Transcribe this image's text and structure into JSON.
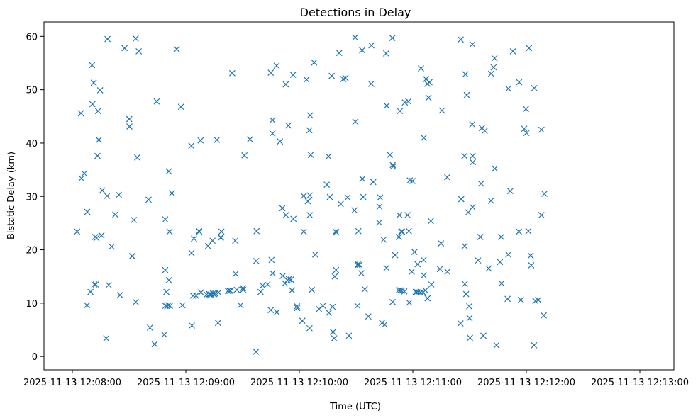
{
  "chart_data": {
    "type": "scatter",
    "title": "Detections in Delay",
    "xlabel": "Time (UTC)",
    "ylabel": "Bistatic Delay (km)",
    "x_unit": "seconds since 2025-11-13 12:08:00",
    "xlim": [
      -15,
      318
    ],
    "ylim": [
      -2.5,
      62.7
    ],
    "xticks": [
      {
        "value": 0,
        "label": "2025-11-13 12:08:00"
      },
      {
        "value": 60,
        "label": "2025-11-13 12:09:00"
      },
      {
        "value": 120,
        "label": "2025-11-13 12:10:00"
      },
      {
        "value": 180,
        "label": "2025-11-13 12:11:00"
      },
      {
        "value": 240,
        "label": "2025-11-13 12:12:00"
      },
      {
        "value": 300,
        "label": "2025-11-13 12:13:00"
      }
    ],
    "yticks": [
      0,
      10,
      20,
      30,
      40,
      50,
      60
    ],
    "marker": "x",
    "color": "#1f77b4",
    "series": [
      {
        "name": "Detections",
        "points": [
          [
            2.5,
            23.4
          ],
          [
            4.5,
            45.6
          ],
          [
            4.8,
            33.4
          ],
          [
            6.3,
            34.3
          ],
          [
            7.7,
            9.6
          ],
          [
            7.9,
            27.1
          ],
          [
            9.6,
            12.1
          ],
          [
            10.4,
            54.6
          ],
          [
            10.6,
            47.3
          ],
          [
            11.3,
            51.3
          ],
          [
            11.6,
            13.5
          ],
          [
            12.1,
            22.4
          ],
          [
            12.4,
            13.5
          ],
          [
            12.8,
            22.2
          ],
          [
            13.3,
            37.6
          ],
          [
            13.6,
            46.0
          ],
          [
            14.0,
            40.6
          ],
          [
            14.7,
            49.9
          ],
          [
            15.4,
            22.7
          ],
          [
            15.8,
            31.1
          ],
          [
            17.9,
            3.4
          ],
          [
            18.4,
            30.1
          ],
          [
            18.6,
            59.5
          ],
          [
            19.2,
            13.4
          ],
          [
            20.8,
            20.6
          ],
          [
            22.7,
            26.6
          ],
          [
            24.6,
            30.3
          ],
          [
            25.2,
            11.5
          ],
          [
            27.6,
            57.8
          ],
          [
            30.1,
            44.5
          ],
          [
            30.2,
            43.1
          ],
          [
            31.6,
            18.8
          ],
          [
            31.7,
            18.8
          ],
          [
            32.5,
            25.6
          ],
          [
            33.5,
            59.6
          ],
          [
            33.5,
            10.2
          ],
          [
            34.3,
            37.3
          ],
          [
            35.1,
            57.2
          ],
          [
            40.3,
            29.4
          ],
          [
            41.0,
            5.4
          ],
          [
            43.5,
            2.3
          ],
          [
            44.6,
            47.8
          ],
          [
            48.6,
            4.1
          ],
          [
            49.1,
            16.2
          ],
          [
            49.1,
            25.7
          ],
          [
            49.2,
            9.5
          ],
          [
            49.7,
            12.1
          ],
          [
            50.1,
            9.4
          ],
          [
            50.8,
            9.6
          ],
          [
            51.0,
            34.7
          ],
          [
            51.0,
            14.3
          ],
          [
            51.4,
            23.4
          ],
          [
            51.6,
            9.5
          ],
          [
            52.6,
            30.6
          ],
          [
            55.2,
            57.6
          ],
          [
            57.4,
            46.8
          ],
          [
            58.2,
            9.6
          ],
          [
            62.9,
            39.5
          ],
          [
            63.0,
            19.4
          ],
          [
            63.2,
            5.8
          ],
          [
            63.8,
            11.4
          ],
          [
            64.3,
            22.1
          ],
          [
            65.4,
            11.4
          ],
          [
            66.9,
            23.5
          ],
          [
            67.1,
            23.4
          ],
          [
            67.8,
            40.5
          ],
          [
            68.0,
            12.0
          ],
          [
            71.0,
            11.6
          ],
          [
            71.7,
            20.7
          ],
          [
            72.4,
            11.7
          ],
          [
            72.6,
            11.6
          ],
          [
            73.3,
            11.6
          ],
          [
            74.1,
            21.7
          ],
          [
            74.3,
            11.8
          ],
          [
            75.0,
            11.7
          ],
          [
            75.6,
            11.8
          ],
          [
            76.4,
            40.6
          ],
          [
            77.0,
            6.3
          ],
          [
            77.3,
            12.0
          ],
          [
            78.4,
            22.3
          ],
          [
            78.6,
            22.3
          ],
          [
            78.8,
            23.4
          ],
          [
            82.2,
            12.3
          ],
          [
            83.1,
            12.3
          ],
          [
            83.6,
            12.3
          ],
          [
            84.5,
            53.1
          ],
          [
            86.1,
            21.7
          ],
          [
            86.3,
            15.5
          ],
          [
            86.9,
            12.5
          ],
          [
            88.9,
            9.6
          ],
          [
            90.2,
            12.8
          ],
          [
            90.3,
            12.5
          ],
          [
            91.0,
            37.7
          ],
          [
            93.9,
            40.7
          ],
          [
            97.1,
            0.9
          ],
          [
            97.2,
            17.9
          ],
          [
            97.4,
            23.5
          ],
          [
            99.5,
            12.1
          ],
          [
            100.6,
            13.3
          ],
          [
            103.2,
            13.5
          ],
          [
            104.9,
            8.7
          ],
          [
            104.9,
            53.2
          ],
          [
            105.3,
            18.1
          ],
          [
            105.8,
            44.3
          ],
          [
            105.8,
            41.8
          ],
          [
            105.9,
            15.6
          ],
          [
            108.0,
            54.5
          ],
          [
            108.1,
            8.3
          ],
          [
            109.8,
            40.3
          ],
          [
            111.0,
            27.8
          ],
          [
            111.2,
            15.1
          ],
          [
            112.4,
            13.7
          ],
          [
            112.8,
            51.0
          ],
          [
            112.9,
            26.5
          ],
          [
            113.7,
            14.3
          ],
          [
            114.2,
            43.3
          ],
          [
            114.4,
            14.5
          ],
          [
            115.5,
            14.4
          ],
          [
            116.1,
            12.4
          ],
          [
            116.7,
            52.8
          ],
          [
            116.9,
            25.8
          ],
          [
            118.8,
            9.4
          ],
          [
            118.9,
            9.1
          ],
          [
            121.6,
            6.7
          ],
          [
            122.3,
            30.1
          ],
          [
            122.3,
            23.4
          ],
          [
            123.8,
            51.9
          ],
          [
            124.5,
            29.1
          ],
          [
            125.3,
            42.4
          ],
          [
            125.4,
            5.3
          ],
          [
            125.5,
            30.2
          ],
          [
            125.5,
            26.5
          ],
          [
            125.7,
            45.2
          ],
          [
            126.0,
            37.8
          ],
          [
            126.6,
            12.5
          ],
          [
            127.8,
            55.1
          ],
          [
            128.4,
            19.1
          ],
          [
            130.4,
            8.9
          ],
          [
            132.5,
            9.5
          ],
          [
            134.5,
            32.2
          ],
          [
            135.4,
            37.5
          ],
          [
            135.6,
            8.2
          ],
          [
            136.1,
            29.9
          ],
          [
            137.1,
            52.6
          ],
          [
            137.6,
            9.3
          ],
          [
            137.8,
            4.6
          ],
          [
            138.4,
            3.4
          ],
          [
            138.7,
            15.0
          ],
          [
            139.2,
            23.4
          ],
          [
            139.4,
            16.2
          ],
          [
            139.5,
            23.3
          ],
          [
            141.1,
            56.9
          ],
          [
            141.9,
            28.6
          ],
          [
            143.3,
            52.0
          ],
          [
            144.4,
            52.2
          ],
          [
            145.5,
            29.8
          ],
          [
            146.2,
            3.9
          ],
          [
            149.1,
            27.4
          ],
          [
            149.5,
            59.8
          ],
          [
            149.6,
            44.0
          ],
          [
            150.7,
            9.5
          ],
          [
            150.8,
            17.1
          ],
          [
            151.0,
            17.3
          ],
          [
            151.2,
            23.5
          ],
          [
            151.8,
            17.2
          ],
          [
            152.8,
            15.6
          ],
          [
            153.2,
            57.4
          ],
          [
            153.3,
            33.3
          ],
          [
            153.8,
            29.9
          ],
          [
            154.6,
            12.6
          ],
          [
            156.5,
            7.5
          ],
          [
            158.0,
            51.1
          ],
          [
            158.1,
            58.3
          ],
          [
            159.1,
            32.7
          ],
          [
            162.2,
            25.1
          ],
          [
            162.4,
            28.1
          ],
          [
            162.7,
            29.8
          ],
          [
            163.7,
            6.3
          ],
          [
            164.5,
            21.9
          ],
          [
            165.1,
            6.0
          ],
          [
            165.9,
            56.8
          ],
          [
            166.1,
            16.6
          ],
          [
            166.2,
            47.0
          ],
          [
            167.9,
            37.8
          ],
          [
            169.2,
            59.7
          ],
          [
            169.3,
            10.2
          ],
          [
            169.4,
            35.9
          ],
          [
            169.6,
            35.6
          ],
          [
            170.6,
            19.0
          ],
          [
            172.5,
            12.4
          ],
          [
            172.6,
            22.4
          ],
          [
            172.9,
            26.5
          ],
          [
            173.2,
            46.0
          ],
          [
            173.4,
            12.4
          ],
          [
            173.9,
            23.4
          ],
          [
            174.1,
            12.3
          ],
          [
            174.3,
            23.4
          ],
          [
            175.5,
            12.2
          ],
          [
            175.8,
            47.6
          ],
          [
            177.2,
            26.5
          ],
          [
            177.6,
            47.8
          ],
          [
            177.9,
            23.5
          ],
          [
            178.1,
            10.1
          ],
          [
            178.4,
            33.0
          ],
          [
            179.4,
            15.9
          ],
          [
            179.8,
            32.9
          ],
          [
            180.9,
            19.6
          ],
          [
            181.5,
            12.1
          ],
          [
            182.0,
            12.1
          ],
          [
            182.5,
            17.3
          ],
          [
            183.0,
            12.1
          ],
          [
            184.1,
            12.0
          ],
          [
            184.3,
            54.0
          ],
          [
            185.4,
            12.0
          ],
          [
            185.7,
            18.1
          ],
          [
            185.8,
            15.2
          ],
          [
            185.8,
            41.0
          ],
          [
            186.6,
            12.4
          ],
          [
            187.0,
            52.0
          ],
          [
            187.7,
            51.1
          ],
          [
            187.8,
            10.9
          ],
          [
            188.3,
            48.5
          ],
          [
            188.8,
            51.4
          ],
          [
            189.5,
            25.4
          ],
          [
            189.8,
            13.5
          ],
          [
            194.3,
            16.4
          ],
          [
            194.9,
            21.2
          ],
          [
            195.4,
            46.1
          ],
          [
            198.2,
            33.6
          ],
          [
            198.3,
            15.9
          ],
          [
            205.2,
            6.2
          ],
          [
            205.3,
            59.4
          ],
          [
            205.6,
            29.5
          ],
          [
            207.3,
            37.6
          ],
          [
            207.4,
            20.7
          ],
          [
            207.5,
            13.6
          ],
          [
            207.8,
            52.9
          ],
          [
            208.2,
            11.7
          ],
          [
            208.5,
            49.0
          ],
          [
            209.3,
            27.0
          ],
          [
            209.8,
            9.4
          ],
          [
            210.0,
            7.2
          ],
          [
            210.2,
            3.5
          ],
          [
            211.4,
            43.5
          ],
          [
            211.5,
            58.5
          ],
          [
            211.6,
            28.0
          ],
          [
            211.6,
            37.6
          ],
          [
            211.7,
            36.4
          ],
          [
            214.5,
            18.0
          ],
          [
            215.7,
            22.4
          ],
          [
            216.1,
            32.4
          ],
          [
            216.5,
            42.8
          ],
          [
            217.3,
            3.9
          ],
          [
            218.0,
            42.3
          ],
          [
            220.1,
            16.5
          ],
          [
            221.3,
            29.2
          ],
          [
            221.4,
            53.0
          ],
          [
            222.7,
            54.2
          ],
          [
            223.2,
            55.9
          ],
          [
            223.3,
            35.2
          ],
          [
            224.2,
            2.1
          ],
          [
            226.1,
            17.7
          ],
          [
            226.7,
            22.4
          ],
          [
            226.9,
            13.7
          ],
          [
            230.1,
            10.8
          ],
          [
            230.5,
            19.1
          ],
          [
            230.5,
            50.2
          ],
          [
            231.5,
            31.0
          ],
          [
            232.9,
            57.2
          ],
          [
            236.1,
            23.4
          ],
          [
            236.2,
            51.4
          ],
          [
            237.1,
            10.6
          ],
          [
            238.9,
            42.7
          ],
          [
            239.8,
            46.4
          ],
          [
            240.1,
            41.9
          ],
          [
            241.1,
            23.5
          ],
          [
            241.4,
            57.8
          ],
          [
            242.3,
            18.9
          ],
          [
            242.6,
            17.1
          ],
          [
            244.1,
            2.1
          ],
          [
            244.2,
            50.3
          ],
          [
            244.8,
            10.4
          ],
          [
            246.3,
            10.6
          ],
          [
            248.0,
            42.5
          ],
          [
            248.0,
            26.5
          ],
          [
            249.2,
            7.7
          ],
          [
            249.6,
            30.5
          ]
        ]
      }
    ]
  }
}
